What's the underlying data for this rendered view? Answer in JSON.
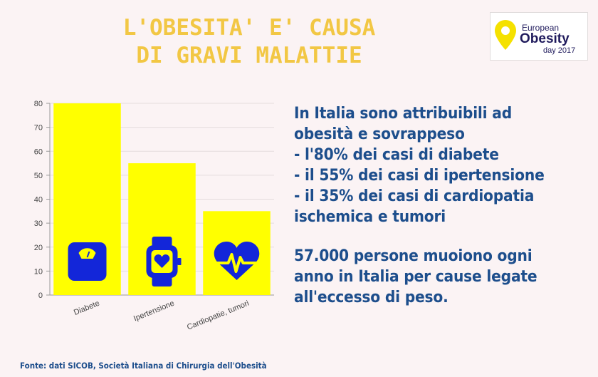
{
  "title": {
    "line1": "L'OBESITA' E' CAUSA",
    "line2": "DI GRAVI MALATTIE"
  },
  "logo": {
    "line1": "European",
    "line2": "Obesity",
    "line3": "day 2017",
    "colors": {
      "pin": "#f5e100",
      "text": "#1f1a5c"
    }
  },
  "chart_data": {
    "type": "bar",
    "categories": [
      "Diabete",
      "Ipertensione",
      "Cardiopatie, tumori"
    ],
    "values": [
      80,
      55,
      35
    ],
    "icons": [
      "scale-icon",
      "smartwatch-heart-icon",
      "heart-pulse-icon"
    ],
    "ylim": [
      0,
      80
    ],
    "yticks": [
      0,
      10,
      20,
      30,
      40,
      50,
      60,
      70,
      80
    ],
    "grid": true,
    "legend": "none",
    "colors": {
      "bar": "#ffff00",
      "icon": "#1326d9"
    }
  },
  "text": {
    "paragraph1": [
      "In Italia sono attribuibili ad",
      "obesità e sovrappeso",
      "- l'80% dei casi di diabete",
      "- il 55% dei casi di ipertensione",
      "- il 35% dei casi di cardiopatia",
      "ischemica e tumori"
    ],
    "paragraph2": [
      "57.000 persone muoiono ogni",
      "anno in Italia per cause legate",
      "all'eccesso di peso."
    ]
  },
  "source": "Fonte: dati SICOB, Società Italiana di Chirurgia dell'Obesità",
  "colors": {
    "title": "#f2c744",
    "text": "#1d4e8c",
    "background": "#fbf3f4"
  }
}
